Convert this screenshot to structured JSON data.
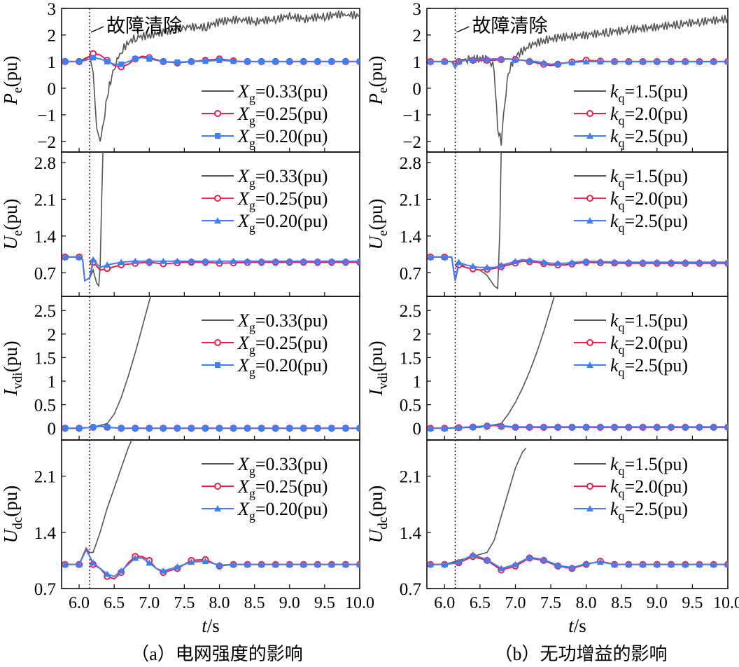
{
  "figure": {
    "annotation": "故障清除",
    "captions": [
      "（a）电网强度的影响",
      "（b）无功增益的影响"
    ],
    "xlabel": "t/s",
    "x_ticks": [
      "6.0",
      "6.5",
      "7.0",
      "7.5",
      "8.0",
      "8.5",
      "9.0",
      "9.5",
      "10.0"
    ],
    "fault_clear_time": 6.15,
    "xlim": [
      5.75,
      10.0
    ]
  },
  "colors": {
    "black": "#555555",
    "red": "#e8204a",
    "blue": "#3f7ff5"
  },
  "chart_data": [
    {
      "id": "a-pe",
      "type": "line",
      "ylabel": "Pe(pu)",
      "ylim": [
        -2.4,
        3
      ],
      "y_ticks": [
        3,
        2,
        1,
        0,
        -1,
        -2
      ],
      "legend": [
        "Xg=0.33(pu)",
        "Xg=0.25(pu)",
        "Xg=0.20(pu)"
      ],
      "series": [
        {
          "name": "Xg=0.33(pu)",
          "x": [
            5.8,
            6.0,
            6.1,
            6.15,
            6.2,
            6.25,
            6.3,
            6.35,
            6.4,
            6.45,
            6.5,
            6.6,
            6.7,
            6.8,
            7.0,
            7.2,
            7.5,
            7.8,
            8.0,
            8.3,
            8.5,
            8.8,
            9.0,
            9.2,
            9.5,
            9.8,
            10.0
          ],
          "y": [
            1,
            1,
            1.15,
            1.2,
            0.6,
            -1.5,
            -2.0,
            -1.2,
            -0.3,
            0.3,
            0.8,
            1.4,
            1.7,
            1.9,
            2.0,
            2.1,
            2.3,
            2.3,
            2.5,
            2.6,
            2.5,
            2.6,
            2.7,
            2.6,
            2.7,
            2.8,
            2.7
          ]
        },
        {
          "name": "Xg=0.25(pu)",
          "x": [
            5.8,
            6.0,
            6.1,
            6.2,
            6.3,
            6.4,
            6.5,
            6.6,
            6.7,
            6.8,
            6.9,
            7.0,
            7.2,
            7.4,
            7.6,
            7.8,
            8.0,
            8.3,
            8.6,
            9.0,
            9.5,
            10.0
          ],
          "y": [
            1,
            1,
            1.1,
            1.3,
            1.25,
            1.05,
            0.85,
            0.8,
            0.9,
            1.1,
            1.2,
            1.15,
            1.0,
            0.95,
            1.0,
            1.05,
            1.1,
            1.0,
            1.0,
            1.0,
            1.0,
            1.0
          ]
        },
        {
          "name": "Xg=0.20(pu)",
          "x": [
            5.8,
            6.0,
            6.1,
            6.2,
            6.3,
            6.4,
            6.5,
            6.6,
            6.7,
            6.8,
            6.9,
            7.0,
            7.2,
            7.4,
            7.6,
            7.8,
            8.0,
            8.3,
            8.6,
            9.0,
            9.5,
            10.0
          ],
          "y": [
            1,
            1,
            1.05,
            1.15,
            1.1,
            1.0,
            0.9,
            0.9,
            1.0,
            1.1,
            1.15,
            1.1,
            1.0,
            0.98,
            1.0,
            1.02,
            1.05,
            1.0,
            1.0,
            1.0,
            1.0,
            1.0
          ]
        }
      ]
    },
    {
      "id": "b-pe",
      "type": "line",
      "ylabel": "Pe(pu)",
      "ylim": [
        -2.4,
        3
      ],
      "y_ticks": [
        3,
        2,
        1,
        0,
        -1,
        -2
      ],
      "legend": [
        "kq=1.5(pu)",
        "kq=2.0(pu)",
        "kq=2.5(pu)"
      ],
      "series": [
        {
          "name": "kq=1.5(pu)",
          "x": [
            5.8,
            6.0,
            6.1,
            6.2,
            6.3,
            6.5,
            6.6,
            6.7,
            6.75,
            6.8,
            6.85,
            6.9,
            7.0,
            7.2,
            7.4,
            7.6,
            8.0,
            8.3,
            8.6,
            9.0,
            9.3,
            9.6,
            10.0
          ],
          "y": [
            1,
            1,
            1,
            1.05,
            1.1,
            1.1,
            1.1,
            0.8,
            -1.5,
            -2.0,
            -0.5,
            0.6,
            1.2,
            1.6,
            1.8,
            1.9,
            2.0,
            2.1,
            2.2,
            2.3,
            2.4,
            2.5,
            2.6
          ]
        },
        {
          "name": "kq=2.0(pu)",
          "x": [
            5.8,
            6.0,
            6.1,
            6.15,
            6.2,
            6.3,
            6.5,
            6.7,
            6.9,
            7.1,
            7.3,
            7.5,
            7.7,
            8.0,
            8.3,
            8.6,
            9.0,
            9.5,
            10.0
          ],
          "y": [
            1,
            1,
            1,
            0.9,
            1.0,
            1.05,
            1.05,
            1.05,
            1.1,
            1.05,
            0.95,
            0.85,
            0.95,
            1.05,
            1.0,
            1.0,
            1.0,
            1.0,
            1.0
          ]
        },
        {
          "name": "kq=2.5(pu)",
          "x": [
            5.8,
            6.0,
            6.1,
            6.15,
            6.2,
            6.3,
            6.5,
            6.7,
            6.9,
            7.1,
            7.3,
            7.5,
            7.7,
            8.0,
            8.3,
            8.6,
            9.0,
            9.5,
            10.0
          ],
          "y": [
            1,
            1,
            1,
            0.75,
            1.0,
            1.05,
            1.08,
            1.1,
            1.1,
            1.05,
            1.0,
            0.9,
            0.95,
            1.0,
            1.0,
            1.0,
            1.0,
            1.0,
            1.0
          ]
        }
      ]
    },
    {
      "id": "a-ue",
      "type": "line",
      "ylabel": "Ue(pu)",
      "ylim": [
        0.25,
        3.0
      ],
      "y_ticks": [
        2.8,
        2.1,
        1.4,
        0.7
      ],
      "legend": [
        "Xg=0.33(pu)",
        "Xg=0.25(pu)",
        "Xg=0.20(pu)"
      ],
      "series": [
        {
          "name": "Xg=0.33(pu)",
          "x": [
            5.8,
            6.0,
            6.05,
            6.08,
            6.15,
            6.2,
            6.25,
            6.28,
            6.3,
            6.32,
            6.34
          ],
          "y": [
            1.0,
            1.0,
            0.95,
            0.55,
            0.6,
            0.75,
            0.5,
            0.45,
            0.8,
            2.0,
            3.0
          ]
        },
        {
          "name": "Xg=0.25(pu)",
          "x": [
            5.8,
            6.0,
            6.05,
            6.08,
            6.15,
            6.2,
            6.3,
            6.4,
            6.6,
            6.8,
            7.0,
            7.2,
            7.5,
            7.8,
            8.0,
            8.5,
            9.0,
            9.5,
            10.0
          ],
          "y": [
            1.0,
            1.0,
            0.95,
            0.55,
            0.6,
            0.9,
            0.75,
            0.78,
            0.85,
            0.88,
            0.9,
            0.87,
            0.9,
            0.9,
            0.88,
            0.9,
            0.9,
            0.9,
            0.9
          ]
        },
        {
          "name": "Xg=0.20(pu)",
          "x": [
            5.8,
            6.0,
            6.05,
            6.08,
            6.15,
            6.2,
            6.3,
            6.4,
            6.6,
            6.8,
            7.0,
            7.2,
            7.5,
            7.8,
            8.0,
            8.5,
            9.0,
            9.5,
            10.0
          ],
          "y": [
            1.0,
            1.0,
            0.95,
            0.55,
            0.6,
            0.95,
            0.8,
            0.85,
            0.9,
            0.92,
            0.92,
            0.92,
            0.92,
            0.92,
            0.92,
            0.92,
            0.92,
            0.92,
            0.92
          ]
        }
      ]
    },
    {
      "id": "b-ue",
      "type": "line",
      "ylabel": "Ue(pu)",
      "ylim": [
        0.25,
        3.0
      ],
      "y_ticks": [
        2.8,
        2.1,
        1.4,
        0.7
      ],
      "legend": [
        "kq=1.5(pu)",
        "kq=2.0(pu)",
        "kq=2.5(pu)"
      ],
      "series": [
        {
          "name": "kq=1.5(pu)",
          "x": [
            5.8,
            6.0,
            6.1,
            6.15,
            6.2,
            6.3,
            6.5,
            6.6,
            6.7,
            6.75,
            6.78,
            6.8
          ],
          "y": [
            1.0,
            1.0,
            1.0,
            0.55,
            0.9,
            0.8,
            0.75,
            0.65,
            0.45,
            0.4,
            1.5,
            3.0
          ]
        },
        {
          "name": "kq=2.0(pu)",
          "x": [
            5.8,
            6.0,
            6.1,
            6.15,
            6.2,
            6.3,
            6.5,
            6.7,
            6.9,
            7.1,
            7.3,
            7.5,
            7.7,
            8.0,
            8.5,
            9.0,
            9.5,
            10.0
          ],
          "y": [
            1.0,
            1.0,
            1.0,
            0.55,
            0.85,
            0.8,
            0.75,
            0.78,
            0.85,
            0.92,
            0.9,
            0.85,
            0.85,
            0.9,
            0.88,
            0.88,
            0.88,
            0.88
          ]
        },
        {
          "name": "kq=2.5(pu)",
          "x": [
            5.8,
            6.0,
            6.1,
            6.15,
            6.2,
            6.3,
            6.5,
            6.7,
            6.9,
            7.1,
            7.3,
            7.5,
            7.7,
            8.0,
            8.5,
            9.0,
            9.5,
            10.0
          ],
          "y": [
            1.0,
            1.0,
            1.0,
            0.55,
            0.9,
            0.85,
            0.8,
            0.8,
            0.88,
            0.95,
            0.92,
            0.88,
            0.88,
            0.92,
            0.9,
            0.9,
            0.9,
            0.9
          ]
        }
      ]
    },
    {
      "id": "a-ivdi",
      "type": "line",
      "ylabel": "Ivdi(pu)",
      "ylim": [
        -0.25,
        2.8
      ],
      "y_ticks": [
        2.5,
        2.0,
        1.5,
        1.0,
        0.5,
        0
      ],
      "legend": [
        "Xg=0.33(pu)",
        "Xg=0.25(pu)",
        "Xg=0.20(pu)"
      ],
      "series": [
        {
          "name": "Xg=0.33(pu)",
          "x": [
            5.8,
            6.0,
            6.2,
            6.4,
            6.5,
            6.6,
            6.7,
            6.8,
            6.9,
            7.0,
            7.02
          ],
          "y": [
            0,
            0,
            0.02,
            0.1,
            0.3,
            0.65,
            1.1,
            1.6,
            2.15,
            2.7,
            2.8
          ]
        },
        {
          "name": "Xg=0.25(pu)",
          "x": [
            5.8,
            6.0,
            6.2,
            6.3,
            6.4,
            6.6,
            7.0,
            7.5,
            8.0,
            8.5,
            9.0,
            9.5,
            10.0
          ],
          "y": [
            0,
            0,
            0.02,
            0.05,
            0.02,
            0,
            0,
            0,
            0,
            0,
            0,
            0,
            0
          ]
        },
        {
          "name": "Xg=0.20(pu)",
          "x": [
            5.8,
            6.0,
            6.2,
            6.3,
            6.4,
            6.6,
            7.0,
            7.5,
            8.0,
            8.5,
            9.0,
            9.5,
            10.0
          ],
          "y": [
            0,
            0,
            0.02,
            0.04,
            0.02,
            0,
            0,
            0,
            0,
            0,
            0,
            0,
            0
          ]
        }
      ]
    },
    {
      "id": "b-ivdi",
      "type": "line",
      "ylabel": "Ivdi(pu)",
      "ylim": [
        -0.25,
        2.8
      ],
      "y_ticks": [
        2.5,
        2.0,
        1.5,
        1.0,
        0.5,
        0
      ],
      "legend": [
        "kq=1.5(pu)",
        "kq=2.0(pu)",
        "kq=2.5(pu)"
      ],
      "series": [
        {
          "name": "kq=1.5(pu)",
          "x": [
            5.8,
            6.0,
            6.5,
            6.8,
            6.9,
            7.0,
            7.1,
            7.2,
            7.3,
            7.4,
            7.5,
            7.55
          ],
          "y": [
            0,
            0,
            0.02,
            0.1,
            0.3,
            0.55,
            0.85,
            1.2,
            1.6,
            2.05,
            2.55,
            2.8
          ]
        },
        {
          "name": "kq=2.0(pu)",
          "x": [
            5.8,
            6.0,
            6.5,
            6.7,
            6.8,
            7.0,
            7.5,
            8.0,
            8.5,
            9.0,
            9.5,
            10.0
          ],
          "y": [
            0,
            0,
            0.03,
            0.06,
            0.04,
            0.02,
            0.02,
            0.02,
            0.02,
            0.02,
            0.02,
            0.02
          ]
        },
        {
          "name": "kq=2.5(pu)",
          "x": [
            5.8,
            6.0,
            6.5,
            6.7,
            6.8,
            7.0,
            7.5,
            8.0,
            8.5,
            9.0,
            9.5,
            10.0
          ],
          "y": [
            0,
            0,
            0.04,
            0.07,
            0.05,
            0.03,
            0.03,
            0.03,
            0.03,
            0.03,
            0.03,
            0.03
          ]
        }
      ]
    },
    {
      "id": "a-udc",
      "type": "line",
      "ylabel": "Udc(pu)",
      "ylim": [
        0.7,
        2.55
      ],
      "y_ticks": [
        2.1,
        1.4,
        0.7
      ],
      "legend": [
        "Xg=0.33(pu)",
        "Xg=0.25(pu)",
        "Xg=0.20(pu)"
      ],
      "series": [
        {
          "name": "Xg=0.33(pu)",
          "x": [
            5.8,
            6.0,
            6.05,
            6.1,
            6.15,
            6.2,
            6.3,
            6.4,
            6.5,
            6.6,
            6.7,
            6.75
          ],
          "y": [
            1.0,
            1.0,
            1.1,
            1.2,
            1.15,
            1.15,
            1.4,
            1.7,
            1.95,
            2.2,
            2.45,
            2.55
          ]
        },
        {
          "name": "Xg=0.25(pu)",
          "x": [
            5.8,
            6.0,
            6.1,
            6.2,
            6.3,
            6.4,
            6.5,
            6.6,
            6.7,
            6.8,
            6.9,
            7.0,
            7.1,
            7.2,
            7.4,
            7.6,
            7.8,
            8.0,
            8.2,
            8.4,
            8.6,
            9.0,
            9.5,
            10.0
          ],
          "y": [
            1.0,
            1.0,
            1.2,
            1.0,
            0.95,
            0.85,
            0.82,
            0.9,
            1.02,
            1.1,
            1.1,
            1.05,
            0.95,
            0.9,
            0.95,
            1.05,
            1.06,
            0.98,
            1.0,
            1.0,
            1.0,
            1.0,
            1.0,
            1.0
          ]
        },
        {
          "name": "Xg=0.20(pu)",
          "x": [
            5.8,
            6.0,
            6.1,
            6.2,
            6.3,
            6.4,
            6.5,
            6.6,
            6.7,
            6.8,
            6.9,
            7.0,
            7.1,
            7.2,
            7.4,
            7.6,
            7.8,
            8.0,
            8.2,
            8.4,
            8.6,
            9.0,
            9.5,
            10.0
          ],
          "y": [
            1.0,
            1.0,
            1.18,
            1.02,
            0.95,
            0.88,
            0.85,
            0.92,
            1.0,
            1.08,
            1.08,
            1.02,
            0.95,
            0.92,
            0.97,
            1.03,
            1.04,
            0.99,
            1.0,
            1.0,
            1.0,
            1.0,
            1.0,
            1.0
          ]
        }
      ]
    },
    {
      "id": "b-udc",
      "type": "line",
      "ylabel": "Udc(pu)",
      "ylim": [
        0.7,
        2.55
      ],
      "y_ticks": [
        2.1,
        1.4,
        0.7
      ],
      "legend": [
        "kq=1.5(pu)",
        "kq=2.0(pu)",
        "kq=2.5(pu)"
      ],
      "series": [
        {
          "name": "kq=1.5(pu)",
          "x": [
            5.8,
            6.0,
            6.2,
            6.4,
            6.6,
            6.7,
            6.8,
            6.9,
            7.0,
            7.1,
            7.15
          ],
          "y": [
            1.0,
            1.0,
            1.05,
            1.1,
            1.15,
            1.3,
            1.6,
            1.9,
            2.2,
            2.4,
            2.45
          ]
        },
        {
          "name": "kq=2.0(pu)",
          "x": [
            5.8,
            6.0,
            6.2,
            6.4,
            6.6,
            6.8,
            7.0,
            7.2,
            7.4,
            7.6,
            7.8,
            8.0,
            8.2,
            8.4,
            8.6,
            9.0,
            9.5,
            10.0
          ],
          "y": [
            1.0,
            1.0,
            1.02,
            1.1,
            1.05,
            0.93,
            0.98,
            1.08,
            1.05,
            0.98,
            0.95,
            1.0,
            1.04,
            1.0,
            1.0,
            1.0,
            1.0,
            1.0
          ]
        },
        {
          "name": "kq=2.5(pu)",
          "x": [
            5.8,
            6.0,
            6.2,
            6.4,
            6.6,
            6.8,
            7.0,
            7.2,
            7.4,
            7.6,
            7.8,
            8.0,
            8.2,
            8.4,
            8.6,
            9.0,
            9.5,
            10.0
          ],
          "y": [
            1.0,
            1.0,
            1.03,
            1.12,
            1.06,
            0.95,
            1.0,
            1.09,
            1.06,
            0.99,
            0.96,
            1.01,
            1.03,
            1.0,
            1.0,
            1.0,
            1.0,
            1.0
          ]
        }
      ]
    }
  ]
}
